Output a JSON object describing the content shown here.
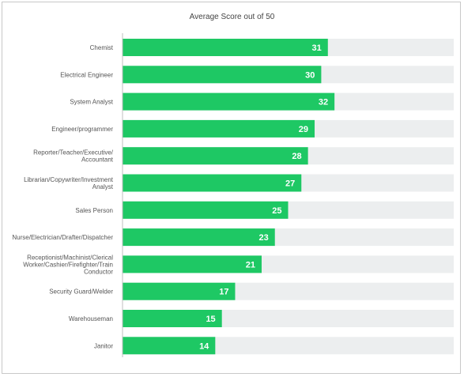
{
  "chart_data": {
    "type": "bar",
    "orientation": "horizontal",
    "title": "Average Score out of 50",
    "categories": [
      [
        "Chemist"
      ],
      [
        "Electrical Engineer"
      ],
      [
        "System Analyst"
      ],
      [
        "Engineer/programmer"
      ],
      [
        "Reporter/Teacher/Executive/",
        "Accountant"
      ],
      [
        "Librarian/Copywriter/Investment",
        "Analyst"
      ],
      [
        "Sales Person"
      ],
      [
        "Nurse/Electrician/Drafter/Dispatcher"
      ],
      [
        "Receptionist/Machinist/Clerical",
        "Worker/Cashier/Firefighter/Train",
        "Conductor"
      ],
      [
        "Security Guard/Welder"
      ],
      [
        "Warehouseman"
      ],
      [
        "Janitor"
      ]
    ],
    "values": [
      31,
      30,
      32,
      29,
      28,
      27,
      25,
      23,
      21,
      17,
      15,
      14
    ],
    "xlim": [
      0,
      50
    ],
    "colors": {
      "bar": "#1ec864",
      "track": "#eceeef",
      "axis": "#bfbfbf"
    }
  }
}
